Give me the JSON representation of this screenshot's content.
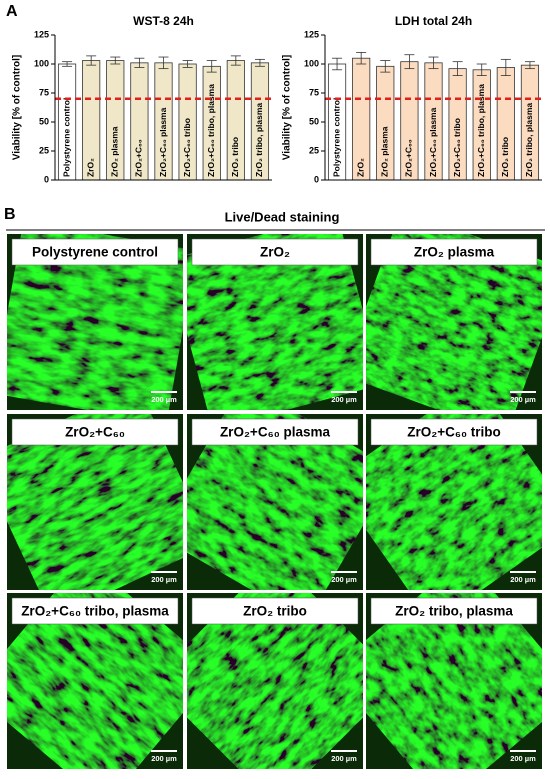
{
  "panel_a_label": "A",
  "chart_data": [
    {
      "type": "bar",
      "title": "WST-8 24h",
      "ylabel": "Viability [% of control]",
      "categories": [
        "Polystyrene control",
        "ZrO₂",
        "ZrO₂ plasma",
        "ZrO₂+C₆₀",
        "ZrO₂+C₆₀ plasma",
        "ZrO₂+C₆₀ tribo",
        "ZrO₂+C₆₀ tribo, plasma",
        "ZrO₂ tribo",
        "ZrO₂ tribo, plasma"
      ],
      "values": [
        100,
        103,
        103,
        101,
        101,
        100,
        98,
        103,
        101
      ],
      "errors": [
        2,
        4,
        3,
        4,
        5,
        3,
        5,
        4,
        3
      ],
      "colors": [
        "#ffffff",
        "#efe7c8",
        "#efe7c8",
        "#efe7c8",
        "#efe7c8",
        "#efe7c8",
        "#efe7c8",
        "#efe7c8",
        "#efe7c8"
      ],
      "ylim": [
        0,
        125
      ],
      "yticks": [
        0,
        25,
        50,
        75,
        100,
        125
      ],
      "reference_line": {
        "value": 70,
        "color": "#e0201a"
      }
    },
    {
      "type": "bar",
      "title": "LDH total 24h",
      "ylabel": "Viability [% of control]",
      "categories": [
        "Polystyrene control",
        "ZrO₂",
        "ZrO₂ plasma",
        "ZrO₂+C₆₀",
        "ZrO₂+C₆₀ plasma",
        "ZrO₂+C₆₀ tribo",
        "ZrO₂+C₆₀ tribo, plasma",
        "ZrO₂ tribo",
        "ZrO₂ tribo, plasma"
      ],
      "values": [
        100,
        105,
        98,
        102,
        101,
        96,
        95,
        97,
        99
      ],
      "errors": [
        5,
        5,
        5,
        6,
        5,
        6,
        5,
        7,
        3
      ],
      "colors": [
        "#ffffff",
        "#fbdcc0",
        "#fbdcc0",
        "#fbdcc0",
        "#fbdcc0",
        "#fbdcc0",
        "#fbdcc0",
        "#fbdcc0",
        "#fbdcc0"
      ],
      "ylim": [
        0,
        125
      ],
      "yticks": [
        0,
        25,
        50,
        75,
        100,
        125
      ],
      "reference_line": {
        "value": 70,
        "color": "#e0201a"
      }
    }
  ],
  "panel_b": {
    "label": "B",
    "title": "Live/Dead staining",
    "images": [
      {
        "caption": "Polystyrene control",
        "scale_bar": "200 µm"
      },
      {
        "caption": "ZrO₂",
        "scale_bar": "200 µm"
      },
      {
        "caption": "ZrO₂ plasma",
        "scale_bar": "200 µm"
      },
      {
        "caption": "ZrO₂+C₆₀",
        "scale_bar": "200 µm"
      },
      {
        "caption": "ZrO₂+C₆₀ plasma",
        "scale_bar": "200 µm"
      },
      {
        "caption": "ZrO₂+C₆₀ tribo",
        "scale_bar": "200 µm"
      },
      {
        "caption": "ZrO₂+C₆₀ tribo, plasma",
        "scale_bar": "200 µm"
      },
      {
        "caption": "ZrO₂ tribo",
        "scale_bar": "200 µm"
      },
      {
        "caption": "ZrO₂ tribo, plasma",
        "scale_bar": "200 µm"
      }
    ]
  }
}
